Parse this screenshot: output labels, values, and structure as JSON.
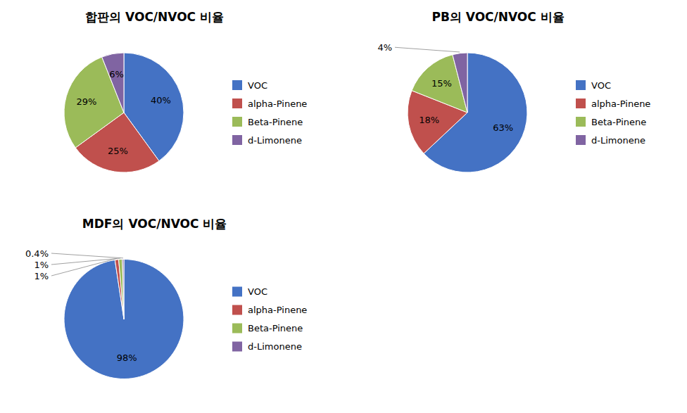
{
  "chart_data": [
    {
      "type": "pie",
      "title": "합판의 VOC/NVOC 비율",
      "categories": [
        "VOC",
        "alpha-Pinene",
        "Beta-Pinene",
        "d-Limonene"
      ],
      "values": [
        40,
        25,
        29,
        6
      ],
      "value_labels": [
        "40%",
        "25%",
        "29%",
        "6%"
      ],
      "colors": [
        "#4472C4",
        "#C0504D",
        "#9BBB59",
        "#8064A2"
      ],
      "data_labels": true,
      "legend": "right"
    },
    {
      "type": "pie",
      "title": "PB의 VOC/NVOC 비율",
      "categories": [
        "VOC",
        "alpha-Pinene",
        "Beta-Pinene",
        "d-Limonene"
      ],
      "values": [
        63,
        18,
        15,
        4
      ],
      "value_labels": [
        "63%",
        "18%",
        "15%",
        "4%"
      ],
      "colors": [
        "#4472C4",
        "#C0504D",
        "#9BBB59",
        "#8064A2"
      ],
      "data_labels": true,
      "legend": "right"
    },
    {
      "type": "pie",
      "title": "MDF의 VOC/NVOC 비율",
      "categories": [
        "VOC",
        "alpha-Pinene",
        "Beta-Pinene",
        "d-Limonene"
      ],
      "values": [
        98,
        1,
        1,
        0.4
      ],
      "value_labels": [
        "98%",
        "1%",
        "1%",
        "0.4%"
      ],
      "colors": [
        "#4472C4",
        "#C0504D",
        "#9BBB59",
        "#8064A2"
      ],
      "data_labels": true,
      "legend": "right"
    }
  ]
}
